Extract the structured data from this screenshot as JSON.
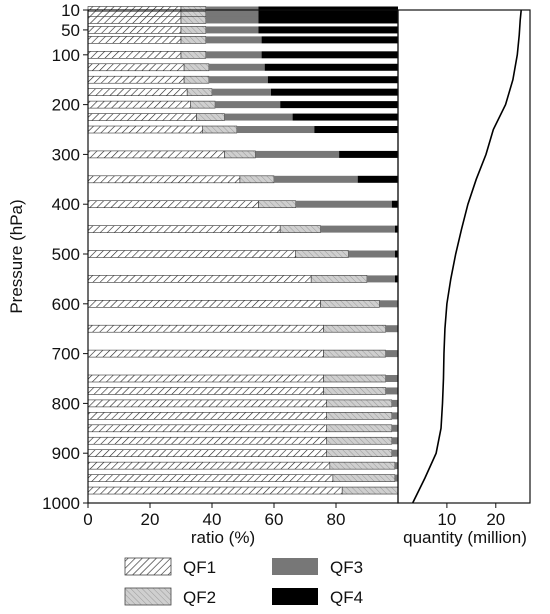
{
  "chart_data": [
    {
      "type": "bar",
      "orientation": "horizontal",
      "stacked": true,
      "ylabel": "Pressure (hPa)",
      "xlabel": "ratio (%)",
      "xlim": [
        0,
        100
      ],
      "ylim": [
        1000,
        10
      ],
      "x_ticks": [
        "0",
        "20",
        "40",
        "60",
        "80"
      ],
      "y_ticks": [
        "10",
        "50",
        "100",
        "200",
        "300",
        "400",
        "500",
        "600",
        "700",
        "800",
        "900",
        "1000"
      ],
      "y_tick_values": [
        10,
        50,
        100,
        200,
        300,
        400,
        500,
        600,
        700,
        800,
        900,
        1000
      ],
      "levels": [
        10,
        20,
        30,
        50,
        70,
        100,
        125,
        150,
        175,
        200,
        225,
        250,
        300,
        350,
        400,
        450,
        500,
        550,
        600,
        650,
        700,
        750,
        775,
        800,
        825,
        850,
        875,
        900,
        925,
        950,
        975
      ],
      "series": [
        {
          "name": "QF1",
          "color": "#ffffff",
          "pattern": "hatch-diagonal",
          "values": [
            30,
            30,
            30,
            30,
            30,
            30,
            31,
            31,
            32,
            33,
            35,
            37,
            44,
            49,
            55,
            62,
            67,
            72,
            75,
            76,
            76,
            76,
            76,
            77,
            77,
            77,
            77,
            77,
            78,
            79,
            82
          ]
        },
        {
          "name": "QF2",
          "color": "#c8c8c8",
          "pattern": "hatch-light",
          "values": [
            8,
            8,
            8,
            8,
            8,
            8,
            8,
            8,
            8,
            8,
            9,
            11,
            10,
            11,
            12,
            13,
            17,
            18,
            19,
            20,
            20,
            20,
            20,
            21,
            21,
            21,
            21,
            21,
            21,
            20,
            18
          ]
        },
        {
          "name": "QF3",
          "color": "#777777",
          "pattern": "solid",
          "values": [
            17,
            17,
            17,
            17,
            18,
            18,
            18,
            19,
            19,
            21,
            22,
            25,
            27,
            27,
            31,
            24,
            15,
            9,
            6,
            4,
            4,
            4,
            4,
            2,
            2,
            2,
            2,
            2,
            1,
            1,
            0
          ]
        },
        {
          "name": "QF4",
          "color": "#000000",
          "pattern": "solid",
          "values": [
            45,
            45,
            45,
            45,
            44,
            44,
            43,
            42,
            41,
            38,
            34,
            27,
            19,
            13,
            2,
            1,
            1,
            1,
            0,
            0,
            0,
            0,
            0,
            0,
            0,
            0,
            0,
            0,
            0,
            0,
            0
          ]
        }
      ],
      "legend": {
        "placement": "bottom",
        "entries": [
          "QF1",
          "QF2",
          "QF3",
          "QF4"
        ]
      }
    },
    {
      "type": "line",
      "xlabel": "quantity (million)",
      "xlim": [
        0,
        27
      ],
      "x_ticks": [
        "10",
        "20"
      ],
      "x_tick_values": [
        10,
        20
      ],
      "line_color": "#000000",
      "points": [
        {
          "p": 10,
          "q": 25.2
        },
        {
          "p": 30,
          "q": 25.0
        },
        {
          "p": 60,
          "q": 24.8
        },
        {
          "p": 100,
          "q": 24.4
        },
        {
          "p": 150,
          "q": 23.5
        },
        {
          "p": 200,
          "q": 22.0
        },
        {
          "p": 250,
          "q": 19.5
        },
        {
          "p": 300,
          "q": 18.0
        },
        {
          "p": 350,
          "q": 16.0
        },
        {
          "p": 400,
          "q": 14.3
        },
        {
          "p": 450,
          "q": 13.0
        },
        {
          "p": 500,
          "q": 11.8
        },
        {
          "p": 550,
          "q": 10.8
        },
        {
          "p": 600,
          "q": 10.0
        },
        {
          "p": 650,
          "q": 9.6
        },
        {
          "p": 700,
          "q": 9.4
        },
        {
          "p": 750,
          "q": 9.3
        },
        {
          "p": 800,
          "q": 9.1
        },
        {
          "p": 850,
          "q": 8.8
        },
        {
          "p": 900,
          "q": 7.8
        },
        {
          "p": 950,
          "q": 5.5
        },
        {
          "p": 1000,
          "q": 3.0
        }
      ]
    }
  ]
}
